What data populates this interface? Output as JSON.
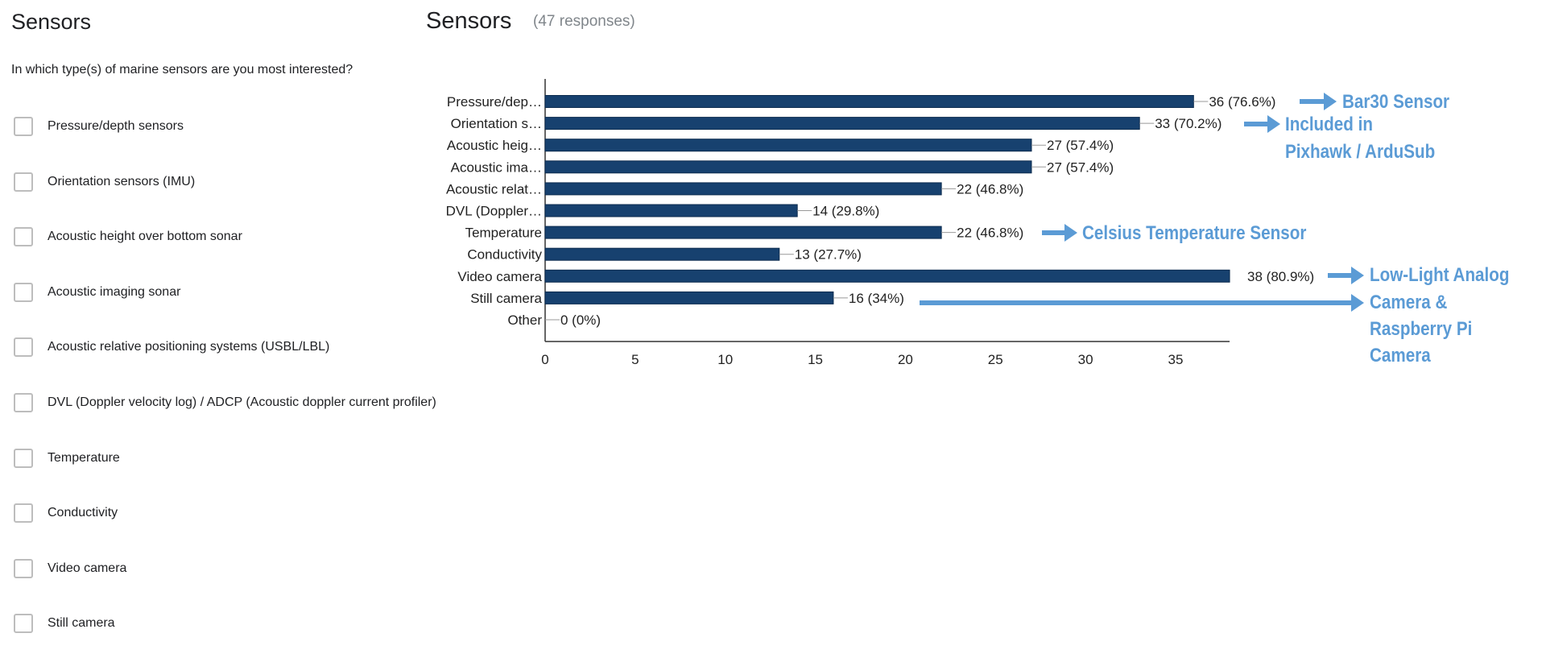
{
  "form": {
    "title": "Sensors",
    "question": "In which type(s) of marine sensors are you most interested?",
    "options": [
      "Pressure/depth sensors",
      "Orientation sensors (IMU)",
      "Acoustic height over bottom sonar",
      "Acoustic imaging sonar",
      "Acoustic relative positioning systems (USBL/LBL)",
      "DVL (Doppler velocity log) / ADCP  (Acoustic doppler current profiler)",
      "Temperature",
      "Conductivity",
      "Video camera",
      "Still camera"
    ]
  },
  "summary": {
    "title": "Sensors",
    "responses": "(47 responses)"
  },
  "chart_data": {
    "type": "bar",
    "orientation": "horizontal",
    "categories": [
      "Pressure/dep…",
      "Orientation s…",
      "Acoustic heig…",
      "Acoustic ima…",
      "Acoustic relat…",
      "DVL (Doppler…",
      "Temperature",
      "Conductivity",
      "Video camera",
      "Still camera",
      "Other"
    ],
    "values": [
      36,
      33,
      27,
      27,
      22,
      14,
      22,
      13,
      38,
      16,
      0
    ],
    "data_labels": [
      "36 (76.6%)",
      "33 (70.2%)",
      "27 (57.4%)",
      "27 (57.4%)",
      "22 (46.8%)",
      "14 (29.8%)",
      "22 (46.8%)",
      "13 (27.7%)",
      "38 (80.9%)",
      "16 (34%)",
      "0 (0%)"
    ],
    "xticks": [
      "0",
      "5",
      "10",
      "15",
      "20",
      "25",
      "30",
      "35"
    ],
    "xlim": [
      0,
      38
    ],
    "bar_color": "#17416f",
    "grid": false
  },
  "annotations": {
    "color": "#5b9bd5",
    "bar30": "Bar30 Sensor",
    "pixhawk": [
      "Included in",
      "Pixhawk / ArduSub"
    ],
    "celsius": "Celsius Temperature Sensor",
    "camera": [
      "Low-Light Analog",
      "Camera &",
      "Raspberry Pi",
      "Camera"
    ]
  }
}
